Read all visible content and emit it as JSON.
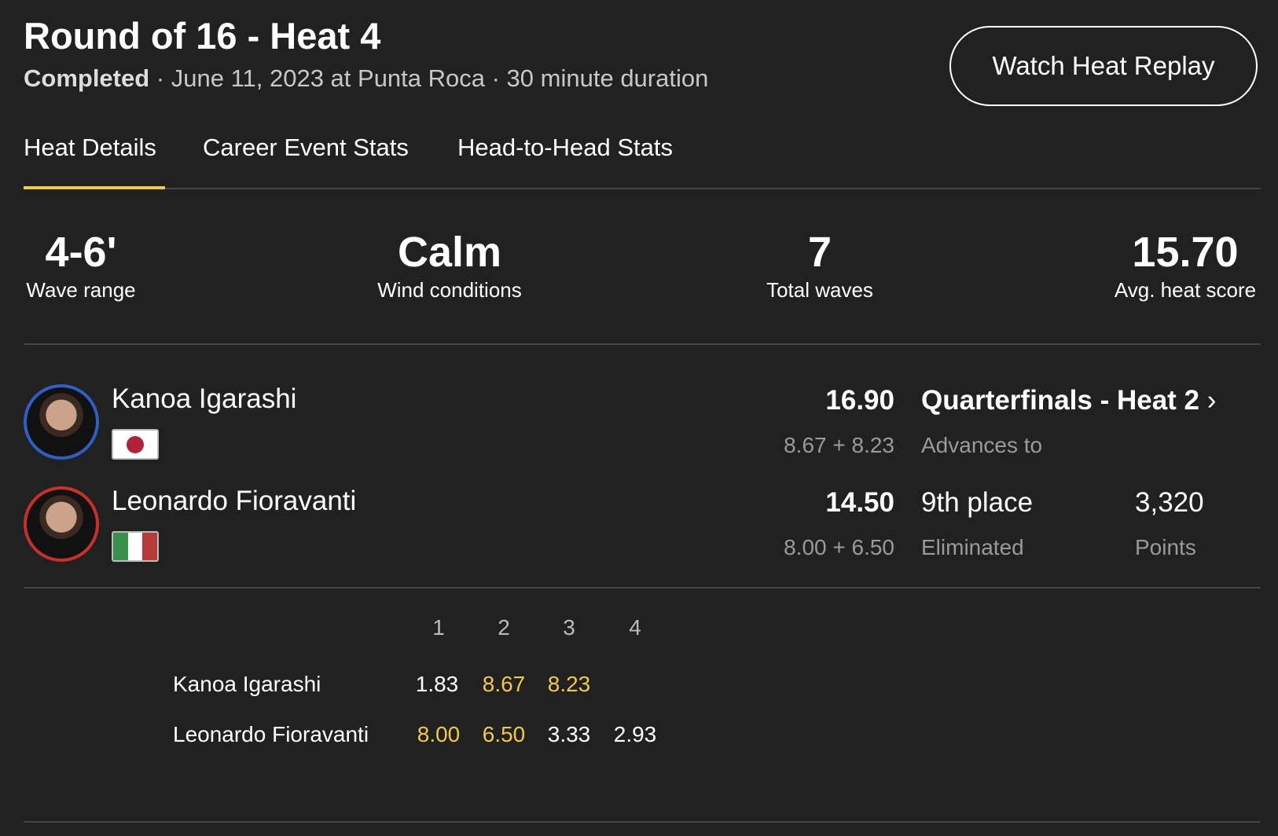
{
  "header": {
    "title": "Round of 16 - Heat 4",
    "status": "Completed",
    "details": " · June 11, 2023 at Punta Roca · 30 minute duration",
    "replay_label": "Watch Heat Replay"
  },
  "tabs": [
    {
      "label": "Heat Details",
      "active": true
    },
    {
      "label": "Career Event Stats"
    },
    {
      "label": "Head-to-Head Stats"
    }
  ],
  "stats": [
    {
      "value": "4-6'",
      "label": "Wave range"
    },
    {
      "value": "Calm",
      "label": "Wind conditions"
    },
    {
      "value": "7",
      "label": "Total waves"
    },
    {
      "value": "15.70",
      "label": "Avg. heat score"
    }
  ],
  "athletes": [
    {
      "name": "Kanoa Igarashi",
      "country": "Japan",
      "ring_color": "#2f5fc4",
      "total": "16.90",
      "breakdown": "8.67 + 8.23",
      "result": "Quarterfinals - Heat 2",
      "result_sub": "Advances to"
    },
    {
      "name": "Leonardo Fioravanti",
      "country": "Italy",
      "ring_color": "#c9302c",
      "total": "14.50",
      "breakdown": "8.00 + 6.50",
      "result": "9th place",
      "result_sub": "Eliminated",
      "points": "3,320",
      "points_label": "Points"
    }
  ],
  "waves": {
    "headers": [
      "1",
      "2",
      "3",
      "4"
    ],
    "rows": [
      {
        "name": "Kanoa Igarashi",
        "scores": [
          "1.83",
          "8.67",
          "8.23"
        ],
        "counted": [
          false,
          true,
          true
        ]
      },
      {
        "name": "Leonardo Fioravanti",
        "scores": [
          "8.00",
          "6.50",
          "3.33",
          "2.93"
        ],
        "counted": [
          true,
          true,
          false,
          false
        ]
      }
    ]
  },
  "colors": {
    "accent": "#f2c94c",
    "background": "#212121"
  }
}
